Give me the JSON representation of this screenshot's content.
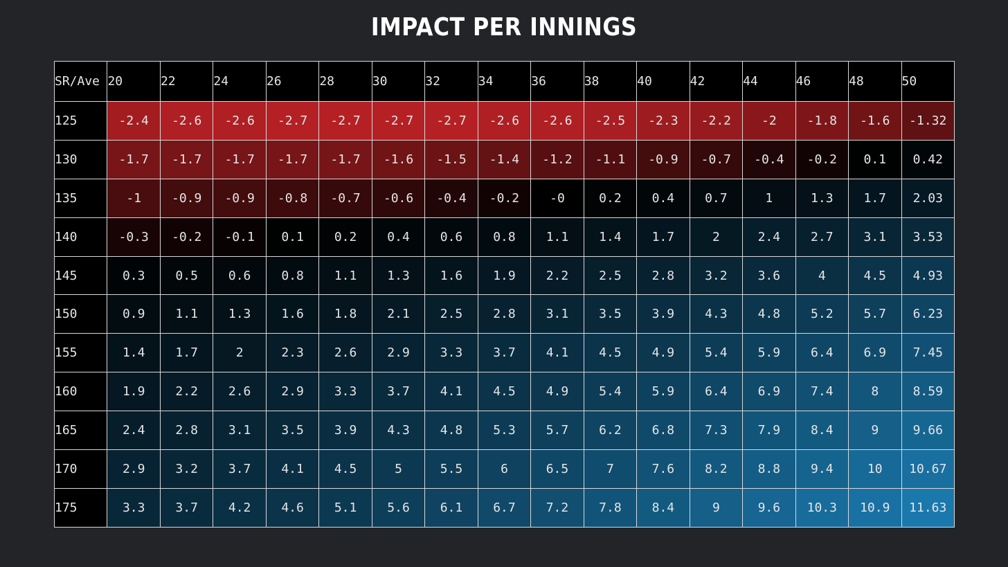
{
  "title": "IMPACT PER INNINGS",
  "chart_data": {
    "type": "heatmap",
    "title": "IMPACT PER INNINGS",
    "corner_label": "SR/Ave",
    "x": [
      "20",
      "22",
      "24",
      "26",
      "28",
      "30",
      "32",
      "34",
      "36",
      "38",
      "40",
      "42",
      "44",
      "46",
      "48",
      "50"
    ],
    "y": [
      "125",
      "130",
      "135",
      "140",
      "145",
      "150",
      "155",
      "160",
      "165",
      "170",
      "175"
    ],
    "values": [
      [
        "-2.4",
        "-2.6",
        "-2.6",
        "-2.7",
        "-2.7",
        "-2.7",
        "-2.7",
        "-2.6",
        "-2.6",
        "-2.5",
        "-2.3",
        "-2.2",
        "-2",
        "-1.8",
        "-1.6",
        "-1.32"
      ],
      [
        "-1.7",
        "-1.7",
        "-1.7",
        "-1.7",
        "-1.7",
        "-1.6",
        "-1.5",
        "-1.4",
        "-1.2",
        "-1.1",
        "-0.9",
        "-0.7",
        "-0.4",
        "-0.2",
        "0.1",
        "0.42"
      ],
      [
        "-1",
        "-0.9",
        "-0.9",
        "-0.8",
        "-0.7",
        "-0.6",
        "-0.4",
        "-0.2",
        "-0",
        "0.2",
        "0.4",
        "0.7",
        "1",
        "1.3",
        "1.7",
        "2.03"
      ],
      [
        "-0.3",
        "-0.2",
        "-0.1",
        "0.1",
        "0.2",
        "0.4",
        "0.6",
        "0.8",
        "1.1",
        "1.4",
        "1.7",
        "2",
        "2.4",
        "2.7",
        "3.1",
        "3.53"
      ],
      [
        "0.3",
        "0.5",
        "0.6",
        "0.8",
        "1.1",
        "1.3",
        "1.6",
        "1.9",
        "2.2",
        "2.5",
        "2.8",
        "3.2",
        "3.6",
        "4",
        "4.5",
        "4.93"
      ],
      [
        "0.9",
        "1.1",
        "1.3",
        "1.6",
        "1.8",
        "2.1",
        "2.5",
        "2.8",
        "3.1",
        "3.5",
        "3.9",
        "4.3",
        "4.8",
        "5.2",
        "5.7",
        "6.23"
      ],
      [
        "1.4",
        "1.7",
        "2",
        "2.3",
        "2.6",
        "2.9",
        "3.3",
        "3.7",
        "4.1",
        "4.5",
        "4.9",
        "5.4",
        "5.9",
        "6.4",
        "6.9",
        "7.45"
      ],
      [
        "1.9",
        "2.2",
        "2.6",
        "2.9",
        "3.3",
        "3.7",
        "4.1",
        "4.5",
        "4.9",
        "5.4",
        "5.9",
        "6.4",
        "6.9",
        "7.4",
        "8",
        "8.59"
      ],
      [
        "2.4",
        "2.8",
        "3.1",
        "3.5",
        "3.9",
        "4.3",
        "4.8",
        "5.3",
        "5.7",
        "6.2",
        "6.8",
        "7.3",
        "7.9",
        "8.4",
        "9",
        "9.66"
      ],
      [
        "2.9",
        "3.2",
        "3.7",
        "4.1",
        "4.5",
        "5",
        "5.5",
        "6",
        "6.5",
        "7",
        "7.6",
        "8.2",
        "8.8",
        "9.4",
        "10",
        "10.67"
      ],
      [
        "3.3",
        "3.7",
        "4.2",
        "4.6",
        "5.1",
        "5.6",
        "6.1",
        "6.7",
        "7.2",
        "7.8",
        "8.4",
        "9",
        "9.6",
        "10.3",
        "10.9",
        "11.63"
      ]
    ],
    "color_scale": {
      "negative_color": "#b52024",
      "neutral_color": "#000000",
      "positive_color": "#1a78ad",
      "negative_max": -2.7,
      "positive_max": 11.63
    }
  }
}
